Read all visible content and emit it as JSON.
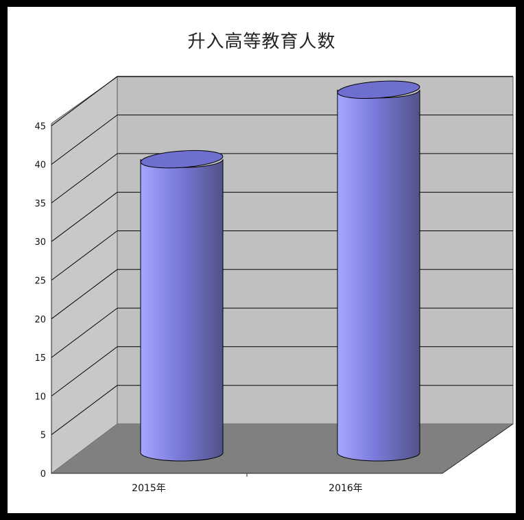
{
  "chart_data": {
    "type": "bar",
    "style": "3d-cylinder",
    "title": "升入高等教育人数",
    "xlabel": "",
    "ylabel": "",
    "categories": [
      "2015年",
      "2016年"
    ],
    "series": [
      {
        "values": [
          38,
          47
        ]
      }
    ],
    "ylim": [
      0,
      45
    ],
    "yticks": [
      "0",
      "5",
      "10",
      "15",
      "20",
      "25",
      "30",
      "35",
      "40",
      "45"
    ],
    "grid": true,
    "legend": "none",
    "colors": {
      "bar_light": "#a6a6ff",
      "bar_mid": "#7b7bdc",
      "bar_dark": "#52528a",
      "bar_top": "#6f6fd0",
      "wall": "#c0c0c0",
      "side_wall": "#c8c8c8",
      "floor": "#808080",
      "gridline": "#000000"
    }
  }
}
